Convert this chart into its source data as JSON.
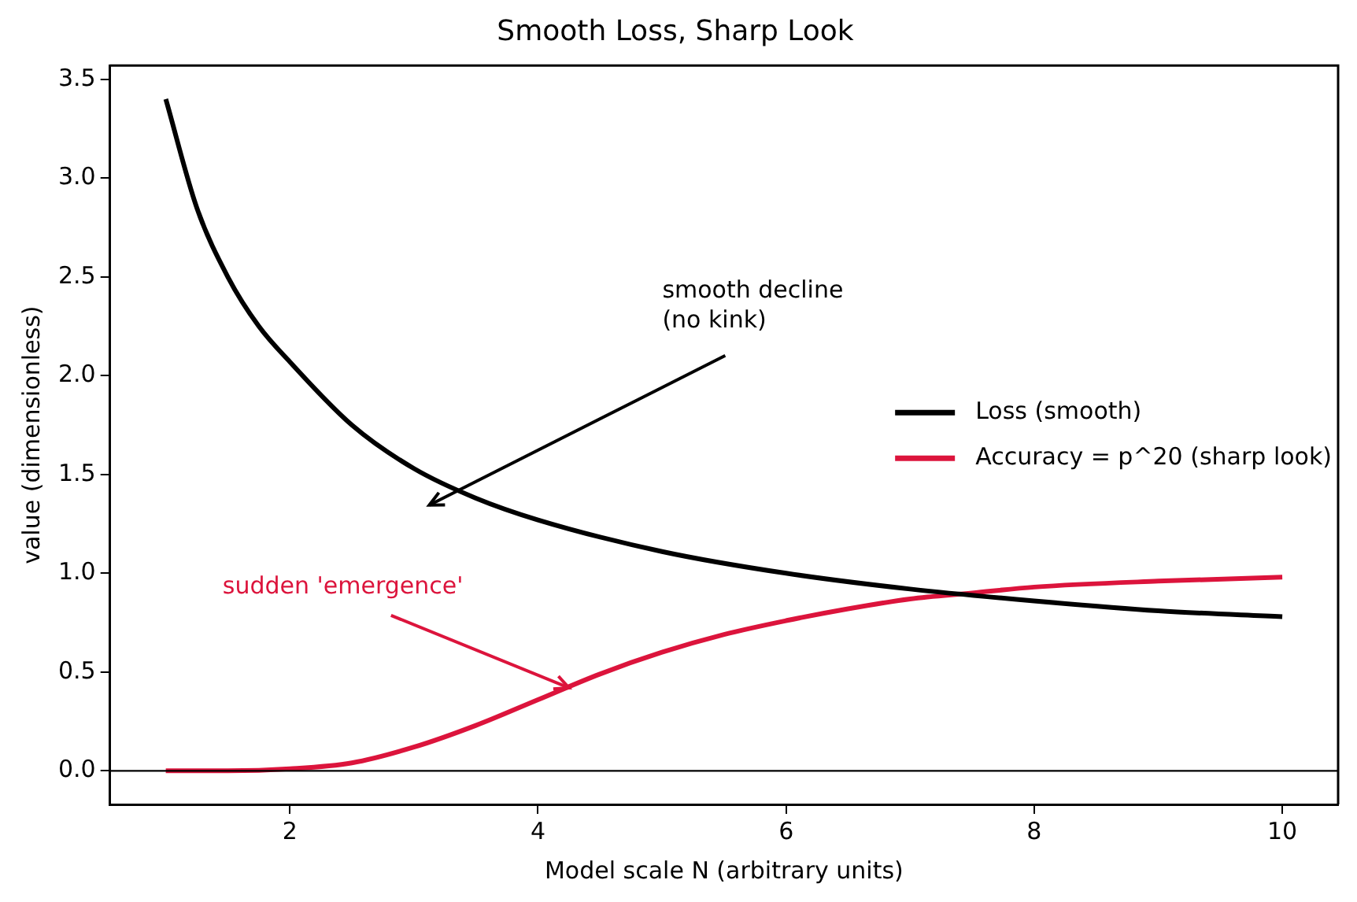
{
  "chart_data": {
    "type": "line",
    "title": "Smooth Loss, Sharp Look",
    "xlabel": "Model scale N (arbitrary units)",
    "ylabel": "value (dimensionless)",
    "series": [
      {
        "name": "Loss (smooth)",
        "color": "#000000",
        "x": [
          1,
          1.25,
          1.5,
          1.75,
          2,
          2.5,
          3,
          3.5,
          4,
          5,
          6,
          7,
          8,
          9,
          10
        ],
        "values": [
          3.4,
          2.85,
          2.5,
          2.25,
          2.07,
          1.75,
          1.53,
          1.38,
          1.27,
          1.11,
          1.0,
          0.92,
          0.86,
          0.81,
          0.78
        ]
      },
      {
        "name": "Accuracy = p^20 (sharp look)",
        "color": "#dc143c",
        "x": [
          1,
          1.5,
          2,
          2.5,
          3,
          3.5,
          4,
          4.5,
          5,
          5.5,
          6,
          6.5,
          7,
          7.5,
          8,
          9,
          10
        ],
        "values": [
          0,
          0,
          0.01,
          0.04,
          0.12,
          0.23,
          0.36,
          0.49,
          0.6,
          0.69,
          0.76,
          0.82,
          0.87,
          0.9,
          0.93,
          0.96,
          0.98
        ]
      }
    ],
    "xlim": [
      0.55,
      10.45
    ],
    "ylim": [
      -0.17,
      3.57
    ],
    "xticks": [
      2,
      4,
      6,
      8,
      10
    ],
    "yticks": [
      {
        "value": 0,
        "label": "0.0"
      },
      {
        "value": 0.5,
        "label": "0.5"
      },
      {
        "value": 1,
        "label": "1.0"
      },
      {
        "value": 1.5,
        "label": "1.5"
      },
      {
        "value": 2,
        "label": "2.0"
      },
      {
        "value": 2.5,
        "label": "2.5"
      },
      {
        "value": 3,
        "label": "3.0"
      },
      {
        "value": 3.5,
        "label": "3.5"
      }
    ],
    "ref_lines": [
      {
        "axis": "y",
        "value": 0,
        "color": "#000000"
      }
    ],
    "annotations": [
      "smooth decline\n(no kink)",
      {
        "text": "sudden 'emergence'",
        "x": 4.25,
        "y": 0.42
      }
    ],
    "legend": "right",
    "grid": false,
    "marker": "none",
    "line_style": "solid"
  }
}
